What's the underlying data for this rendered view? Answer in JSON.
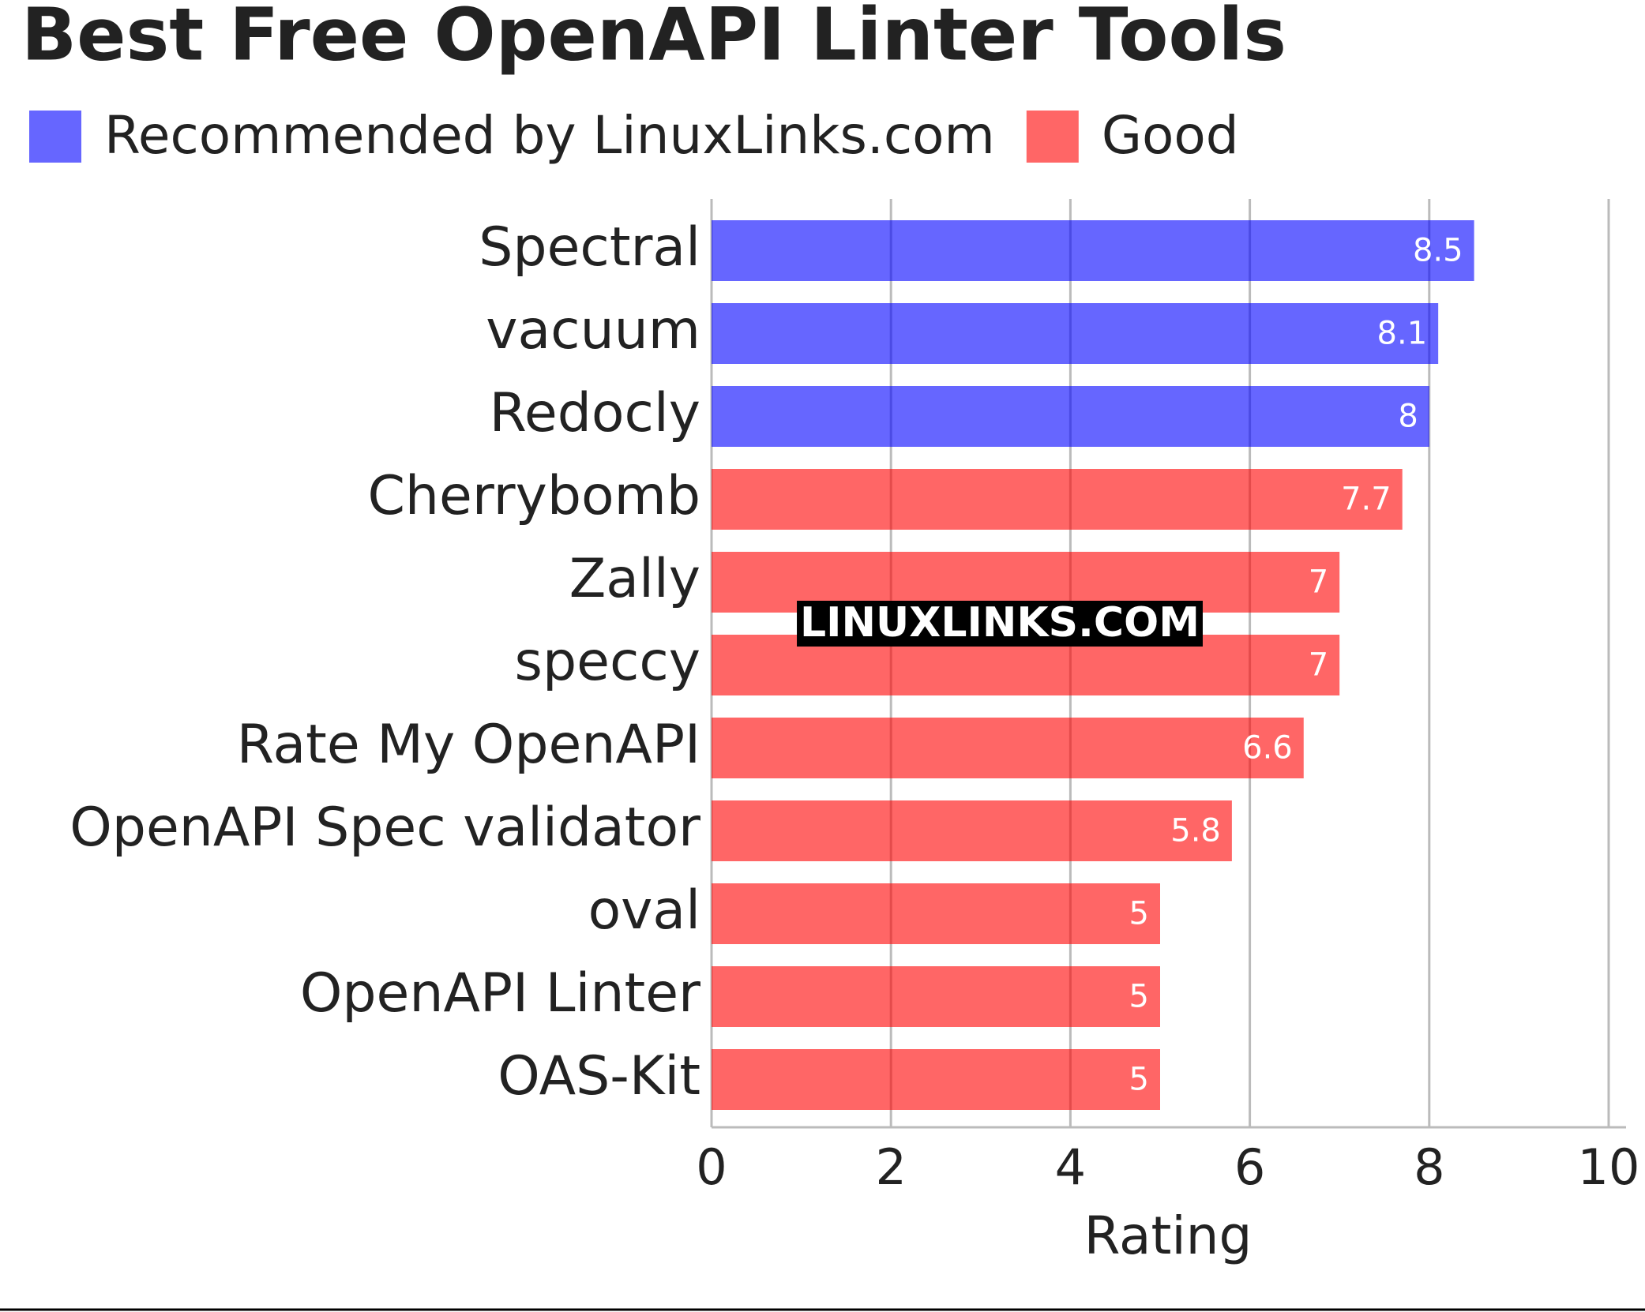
{
  "chart_data": {
    "type": "bar",
    "orientation": "horizontal",
    "title": "Best Free OpenAPI Linter Tools",
    "categories": [
      "Spectral",
      "vacuum",
      "Redocly",
      "Cherrybomb",
      "Zally",
      "speccy",
      "Rate My OpenAPI",
      "OpenAPI Spec validator",
      "oval",
      "OpenAPI Linter",
      "OAS-Kit"
    ],
    "series": [
      {
        "name": "Recommended by LinuxLinks.com",
        "color": "#0000ff",
        "values": [
          8.5,
          8.1,
          8,
          null,
          null,
          null,
          null,
          null,
          null,
          null,
          null
        ]
      },
      {
        "name": "Good",
        "color": "#ff0000",
        "values": [
          null,
          null,
          null,
          7.7,
          7,
          7,
          6.6,
          5.8,
          5,
          5,
          5
        ]
      }
    ],
    "xlabel": "Rating",
    "xlim": [
      0,
      10
    ],
    "xticks": [
      0,
      2,
      4,
      6,
      8,
      10
    ],
    "grid": true,
    "legend": "top",
    "watermark": "LINUXLINKS.COM"
  }
}
